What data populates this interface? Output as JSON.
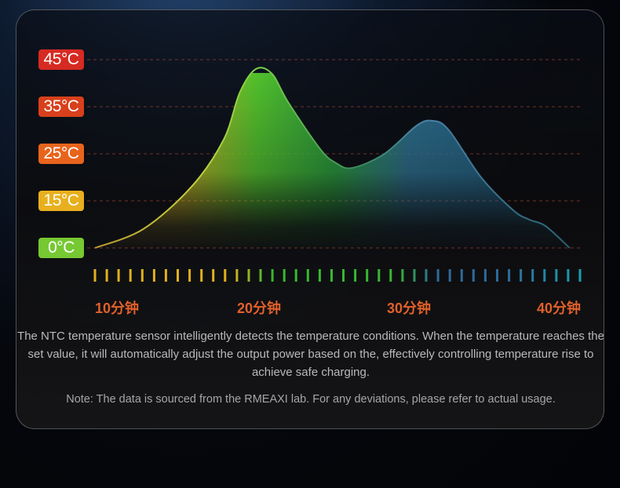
{
  "chart_data": {
    "type": "area",
    "y_ticks": [
      {
        "label": "45°C",
        "value": 45,
        "color": "#d62a22"
      },
      {
        "label": "35°C",
        "value": 35,
        "color": "#d8401c"
      },
      {
        "label": "25°C",
        "value": 25,
        "color": "#e8641c"
      },
      {
        "label": "15°C",
        "value": 15,
        "color": "#e8b01e"
      },
      {
        "label": "0°C",
        "value": 0,
        "color": "#76c932"
      }
    ],
    "x_ticks": [
      {
        "label": "10分钟",
        "value": 10
      },
      {
        "label": "20分钟",
        "value": 20
      },
      {
        "label": "30分钟",
        "value": 30
      },
      {
        "label": "40分钟",
        "value": 40
      }
    ],
    "x_range": [
      10,
      40
    ],
    "grid": "dashed horizontal",
    "curve": {
      "x": [
        10,
        13,
        16,
        18,
        19,
        20,
        21,
        22,
        24,
        25,
        26,
        28,
        30,
        31,
        32,
        34,
        36,
        37,
        38,
        39.5
      ],
      "y": [
        0,
        6,
        18,
        28,
        38,
        43,
        42,
        36,
        26,
        23,
        22,
        25,
        31,
        32,
        30,
        20,
        12,
        9,
        7,
        0
      ]
    },
    "colors": {
      "yellow": "#e0b020",
      "green": "#37b830",
      "blue": "#2e6a98",
      "teal": "#1aa0b0"
    }
  },
  "description": "The NTC temperature sensor intelligently detects the temperature conditions. When the temperature reaches the set value, it will automatically adjust the output power based on the, effectively controlling temperature rise to achieve safe charging.",
  "note": "Note: The data is sourced from the RMEAXI lab. For any deviations, please refer to actual usage."
}
